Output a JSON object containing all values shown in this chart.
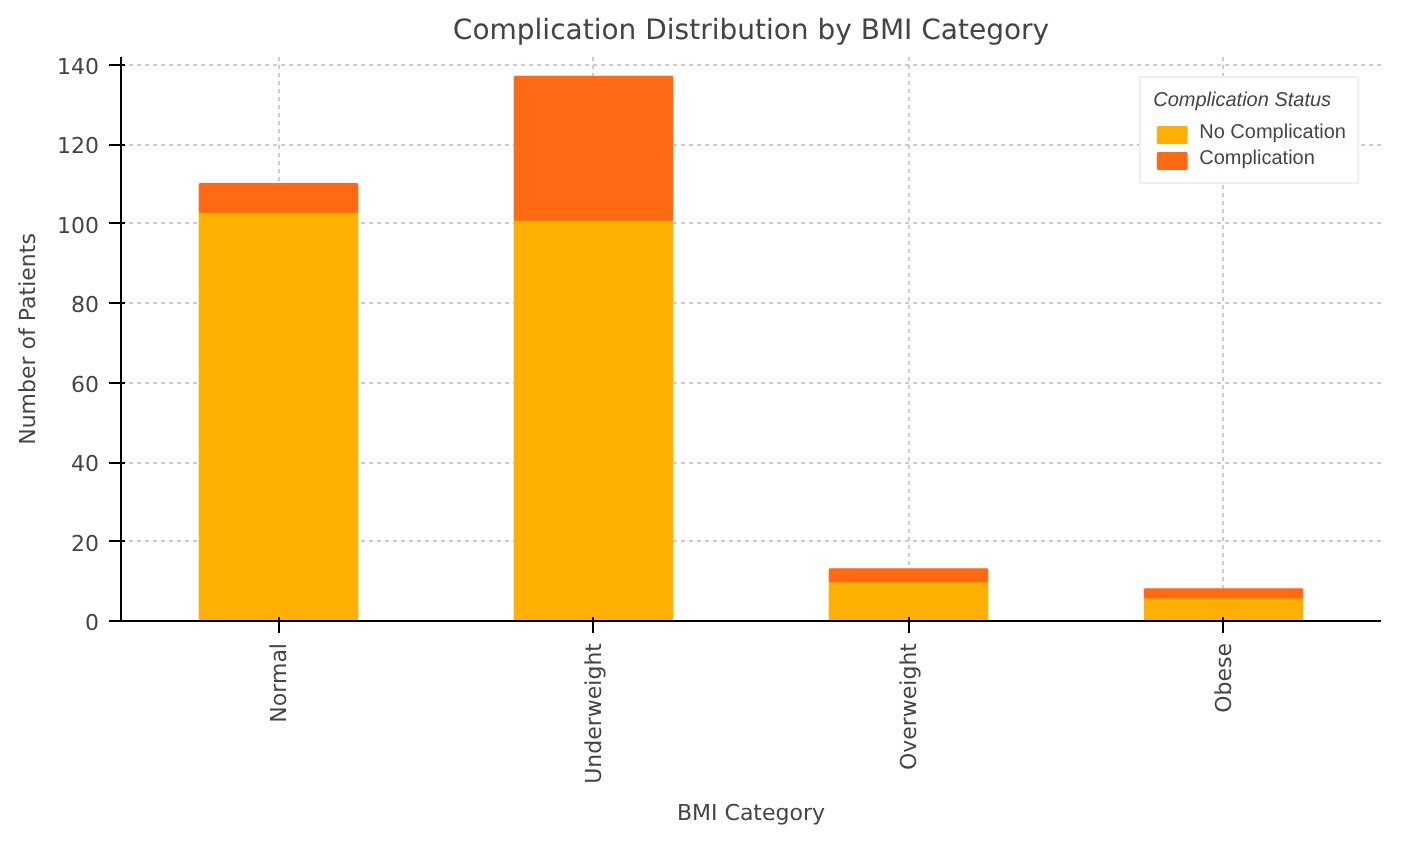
{
  "chart_data": {
    "type": "bar",
    "title": "Complication Distribution by BMI Category",
    "xlabel": "BMI Category",
    "ylabel": "Number of Patients",
    "legend_title": "Complication Status",
    "categories": [
      "Normal",
      "Underweight",
      "Overweight",
      "Obese"
    ],
    "series": [
      {
        "name": "No Complication",
        "color": "#ffb000",
        "values": [
          103,
          101,
          10,
          6
        ]
      },
      {
        "name": "Complication",
        "color": "#ff6a13",
        "values": [
          7,
          36,
          3,
          2
        ]
      }
    ],
    "stacked": true,
    "ylim": [
      0,
      142
    ],
    "yticks": [
      0,
      20,
      40,
      60,
      80,
      100,
      120,
      140
    ],
    "grid": true,
    "legend": "top right"
  }
}
